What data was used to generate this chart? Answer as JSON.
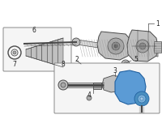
{
  "bg_color": "#ffffff",
  "lc": "#4a4a4a",
  "lc2": "#666666",
  "hl_fill": "#5b9bd5",
  "hl_edge": "#2060a0",
  "gray1": "#d8d8d8",
  "gray2": "#c0c0c0",
  "gray3": "#a8a8a8",
  "gray4": "#888888",
  "box_edge": "#888888",
  "box_fill": "#f5f5f5",
  "label_fs": 5.5,
  "label_color": "#222222",
  "figsize": [
    2.0,
    1.47
  ],
  "dpi": 100,
  "rack_hatch": "#999999"
}
